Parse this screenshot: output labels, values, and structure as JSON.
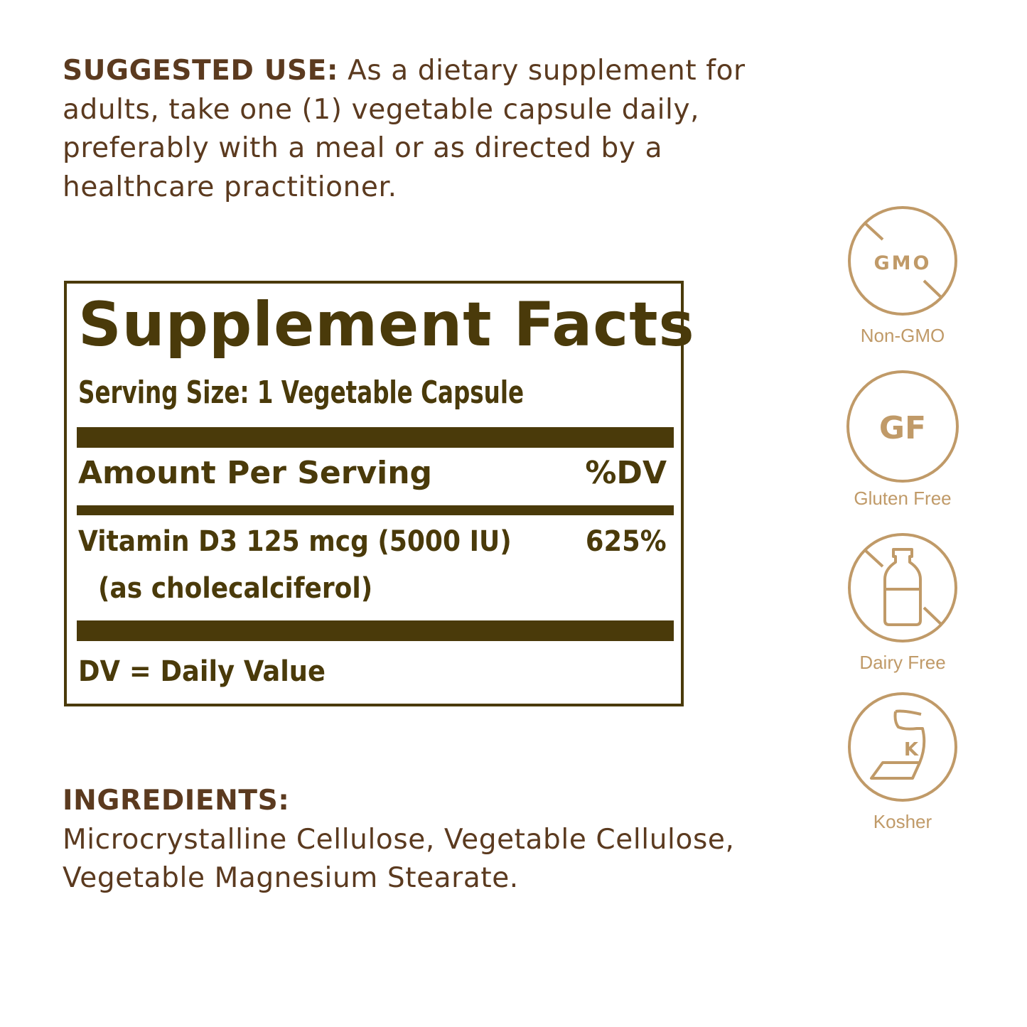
{
  "suggested_use": {
    "heading": "SUGGESTED USE:",
    "text": "As a dietary supplement for adults, take one (1) vegetable capsule daily, preferably with a meal or as directed by a healthcare practitioner."
  },
  "supplement_facts": {
    "title": "Supplement Facts",
    "serving_size": "Serving Size: 1 Vegetable Capsule",
    "amount_header": "Amount Per Serving",
    "dv_header": "%DV",
    "rows": [
      {
        "name": "Vitamin D3 125 mcg (5000 IU)",
        "sub": "(as cholecalciferol)",
        "dv": "625%"
      }
    ],
    "footnote": "DV = Daily Value"
  },
  "ingredients": {
    "heading": "INGREDIENTS:",
    "text": "Microcrystalline Cellulose, Vegetable Cellulose, Vegetable Magnesium Stearate."
  },
  "badges": [
    {
      "icon": "no-gmo-icon",
      "symbol": "GMO",
      "label": "Non-GMO"
    },
    {
      "icon": "gluten-free-icon",
      "symbol": "GF",
      "label": "Gluten Free"
    },
    {
      "icon": "dairy-free-icon",
      "label": "Dairy Free"
    },
    {
      "icon": "kosher-icon",
      "symbol": "K",
      "label": "Kosher"
    }
  ],
  "colors": {
    "label_dark": "#4a3a0a",
    "text_brown": "#5b3a1f",
    "badge_tan": "#c09a68"
  }
}
